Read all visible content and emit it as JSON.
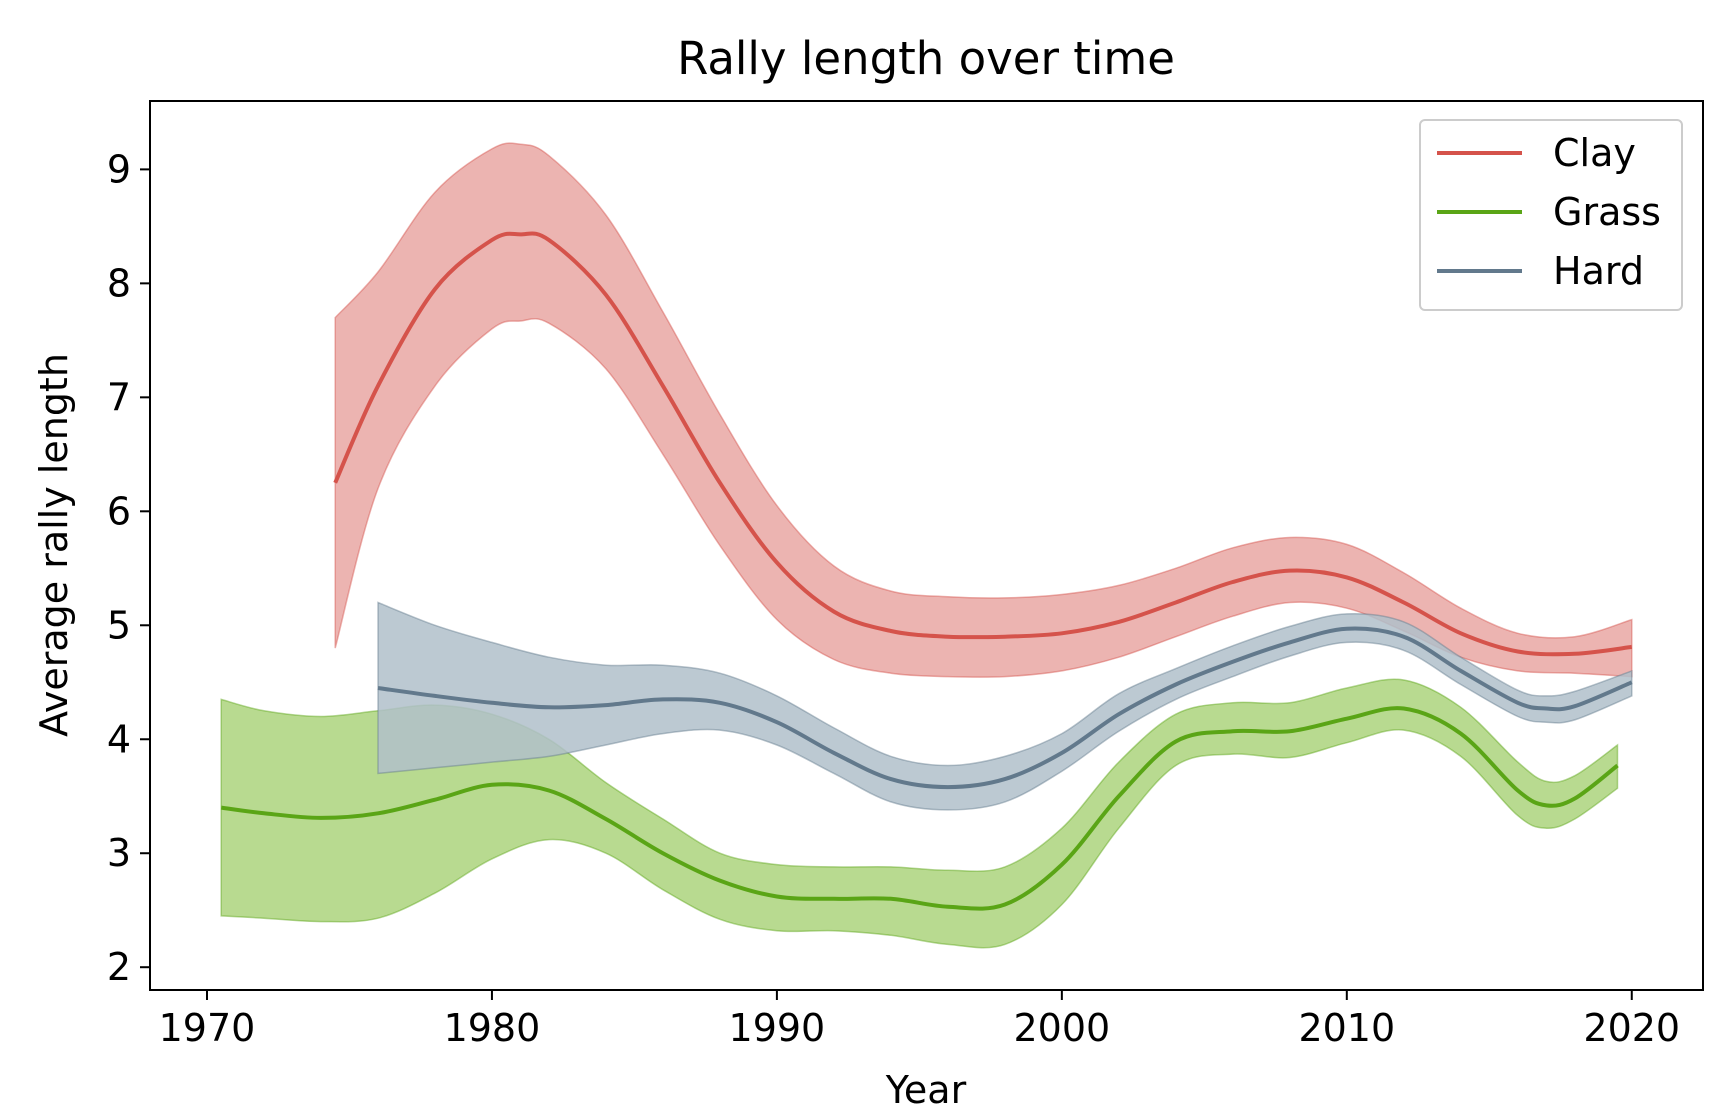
{
  "chart_data": {
    "type": "line",
    "title": "Rally length over time",
    "xlabel": "Year",
    "ylabel": "Average rally length",
    "xlim": [
      1968,
      2022.5
    ],
    "ylim": [
      1.8,
      9.6
    ],
    "xticks": [
      1970,
      1980,
      1990,
      2000,
      2010,
      2020
    ],
    "yticks": [
      2,
      3,
      4,
      5,
      6,
      7,
      8,
      9
    ],
    "grid": false,
    "legend_position": "top-right",
    "band": "shaded confidence interval around each line",
    "series": [
      {
        "name": "Clay",
        "color": "#d5534b",
        "band_color": "#e9a7a3",
        "x": [
          1974.5,
          1976,
          1978,
          1980,
          1981,
          1982,
          1984,
          1986,
          1988,
          1990,
          1992,
          1994,
          1996,
          1998,
          2000,
          2002,
          2004,
          2006,
          2008,
          2010,
          2012,
          2014,
          2016,
          2018,
          2020
        ],
        "y": [
          6.25,
          7.1,
          7.95,
          8.38,
          8.43,
          8.38,
          7.9,
          7.1,
          6.25,
          5.55,
          5.12,
          4.95,
          4.9,
          4.9,
          4.93,
          5.03,
          5.2,
          5.38,
          5.48,
          5.42,
          5.2,
          4.93,
          4.77,
          4.75,
          4.81
        ],
        "lower": [
          4.8,
          6.2,
          7.1,
          7.6,
          7.67,
          7.65,
          7.25,
          6.5,
          5.7,
          5.05,
          4.7,
          4.58,
          4.55,
          4.55,
          4.6,
          4.72,
          4.9,
          5.08,
          5.2,
          5.15,
          4.95,
          4.72,
          4.6,
          4.58,
          4.55
        ],
        "upper": [
          7.7,
          8.1,
          8.8,
          9.18,
          9.22,
          9.12,
          8.6,
          7.75,
          6.85,
          6.05,
          5.52,
          5.3,
          5.25,
          5.24,
          5.27,
          5.35,
          5.5,
          5.68,
          5.77,
          5.71,
          5.46,
          5.15,
          4.93,
          4.9,
          5.05
        ]
      },
      {
        "name": "Grass",
        "color": "#5aa516",
        "band_color": "#abd37c",
        "x": [
          1970.5,
          1972,
          1974,
          1976,
          1978,
          1980,
          1982,
          1984,
          1986,
          1988,
          1990,
          1992,
          1994,
          1996,
          1998,
          2000,
          2002,
          2004,
          2006,
          2008,
          2010,
          2012,
          2014,
          2016,
          2017,
          2018,
          2019.5
        ],
        "y": [
          3.4,
          3.35,
          3.31,
          3.35,
          3.47,
          3.6,
          3.55,
          3.3,
          3.0,
          2.76,
          2.62,
          2.6,
          2.6,
          2.53,
          2.55,
          2.9,
          3.5,
          3.98,
          4.07,
          4.07,
          4.18,
          4.27,
          4.05,
          3.55,
          3.42,
          3.48,
          3.77
        ],
        "lower": [
          2.45,
          2.43,
          2.4,
          2.43,
          2.65,
          2.95,
          3.12,
          3.0,
          2.68,
          2.42,
          2.32,
          2.32,
          2.28,
          2.2,
          2.2,
          2.55,
          3.22,
          3.77,
          3.87,
          3.84,
          3.97,
          4.08,
          3.85,
          3.33,
          3.22,
          3.3,
          3.57
        ],
        "upper": [
          4.35,
          4.25,
          4.2,
          4.25,
          4.3,
          4.22,
          4.0,
          3.62,
          3.3,
          3.0,
          2.9,
          2.88,
          2.88,
          2.85,
          2.88,
          3.22,
          3.8,
          4.22,
          4.32,
          4.32,
          4.45,
          4.52,
          4.28,
          3.8,
          3.63,
          3.68,
          3.95
        ]
      },
      {
        "name": "Hard",
        "color": "#62798c",
        "band_color": "#b0bfca",
        "x": [
          1976,
          1978,
          1980,
          1982,
          1984,
          1986,
          1988,
          1990,
          1992,
          1994,
          1996,
          1998,
          2000,
          2002,
          2004,
          2006,
          2008,
          2010,
          2012,
          2014,
          2016,
          2017,
          2018,
          2020
        ],
        "y": [
          4.45,
          4.38,
          4.32,
          4.28,
          4.3,
          4.35,
          4.32,
          4.15,
          3.88,
          3.65,
          3.58,
          3.65,
          3.88,
          4.22,
          4.48,
          4.68,
          4.85,
          4.97,
          4.9,
          4.6,
          4.32,
          4.27,
          4.29,
          4.5
        ],
        "lower": [
          3.7,
          3.75,
          3.8,
          3.85,
          3.95,
          4.05,
          4.08,
          3.95,
          3.7,
          3.45,
          3.38,
          3.45,
          3.72,
          4.07,
          4.35,
          4.55,
          4.73,
          4.85,
          4.78,
          4.48,
          4.2,
          4.15,
          4.17,
          4.38
        ],
        "upper": [
          5.2,
          5.0,
          4.85,
          4.72,
          4.65,
          4.65,
          4.58,
          4.38,
          4.1,
          3.85,
          3.77,
          3.85,
          4.05,
          4.4,
          4.62,
          4.82,
          4.99,
          5.1,
          5.03,
          4.72,
          4.43,
          4.38,
          4.42,
          4.6
        ]
      }
    ]
  }
}
